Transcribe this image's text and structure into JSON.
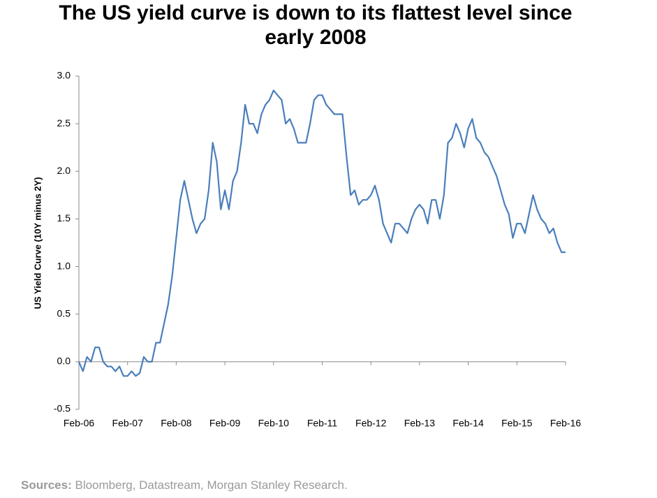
{
  "chart_data": {
    "type": "line",
    "title": "The US yield curve is down to its flattest level since",
    "title_line2": "early 2008",
    "y_label": "US Yield Curve (10Y minus 2Y)",
    "source_label": "Sources:",
    "source": "Bloomberg, Datastream, Morgan Stanley Research.",
    "categories": [
      "Feb-06",
      null,
      null,
      null,
      null,
      null,
      null,
      null,
      null,
      null,
      null,
      null,
      "Feb-07",
      null,
      null,
      null,
      null,
      null,
      null,
      null,
      null,
      null,
      null,
      null,
      "Feb-08",
      null,
      null,
      null,
      null,
      null,
      null,
      null,
      null,
      null,
      null,
      null,
      "Feb-09",
      null,
      null,
      null,
      null,
      null,
      null,
      null,
      null,
      null,
      null,
      null,
      "Feb-10",
      null,
      null,
      null,
      null,
      null,
      null,
      null,
      null,
      null,
      null,
      null,
      "Feb-11",
      null,
      null,
      null,
      null,
      null,
      null,
      null,
      null,
      null,
      null,
      null,
      "Feb-12",
      null,
      null,
      null,
      null,
      null,
      null,
      null,
      null,
      null,
      null,
      null,
      "Feb-13",
      null,
      null,
      null,
      null,
      null,
      null,
      null,
      null,
      null,
      null,
      null,
      "Feb-14",
      null,
      null,
      null,
      null,
      null,
      null,
      null,
      null,
      null,
      null,
      null,
      "Feb-15",
      null,
      null,
      null,
      null,
      null,
      null,
      null,
      null,
      null,
      null,
      null,
      "Feb-16"
    ],
    "series": [
      {
        "name": "US Yield Curve",
        "color": "#4a7ebb",
        "values": [
          0.0,
          -0.1,
          0.05,
          0.0,
          0.15,
          0.15,
          0.0,
          -0.05,
          -0.05,
          -0.1,
          -0.05,
          -0.15,
          -0.15,
          -0.1,
          -0.15,
          -0.12,
          0.05,
          0.0,
          0.0,
          0.2,
          0.2,
          0.4,
          0.6,
          0.9,
          1.3,
          1.7,
          1.9,
          1.7,
          1.5,
          1.35,
          1.45,
          1.5,
          1.8,
          2.3,
          2.1,
          1.6,
          1.8,
          1.6,
          1.9,
          2.0,
          2.3,
          2.7,
          2.5,
          2.5,
          2.4,
          2.6,
          2.7,
          2.75,
          2.85,
          2.8,
          2.75,
          2.5,
          2.55,
          2.45,
          2.3,
          2.3,
          2.3,
          2.5,
          2.75,
          2.8,
          2.8,
          2.7,
          2.65,
          2.6,
          2.6,
          2.6,
          2.15,
          1.75,
          1.8,
          1.65,
          1.7,
          1.7,
          1.75,
          1.85,
          1.7,
          1.45,
          1.35,
          1.25,
          1.45,
          1.45,
          1.4,
          1.35,
          1.5,
          1.6,
          1.65,
          1.6,
          1.45,
          1.7,
          1.7,
          1.5,
          1.75,
          2.3,
          2.35,
          2.5,
          2.4,
          2.25,
          2.45,
          2.55,
          2.35,
          2.3,
          2.2,
          2.15,
          2.05,
          1.95,
          1.8,
          1.65,
          1.55,
          1.3,
          1.45,
          1.45,
          1.35,
          1.55,
          1.75,
          1.6,
          1.5,
          1.45,
          1.35,
          1.4,
          1.25,
          1.15,
          1.15
        ]
      }
    ],
    "ylim": [
      -0.5,
      3.0
    ],
    "yticks": [
      {
        "value": -0.5,
        "label": "-0.5"
      },
      {
        "value": 0,
        "label": "0.0"
      },
      {
        "value": 0.5,
        "label": "0.5"
      },
      {
        "value": 1,
        "label": "1.0"
      },
      {
        "value": 1.5,
        "label": "1.5"
      },
      {
        "value": 2,
        "label": "2.0"
      },
      {
        "value": 2.5,
        "label": "2.5"
      },
      {
        "value": 3,
        "label": "3.0"
      }
    ],
    "grid": false
  }
}
